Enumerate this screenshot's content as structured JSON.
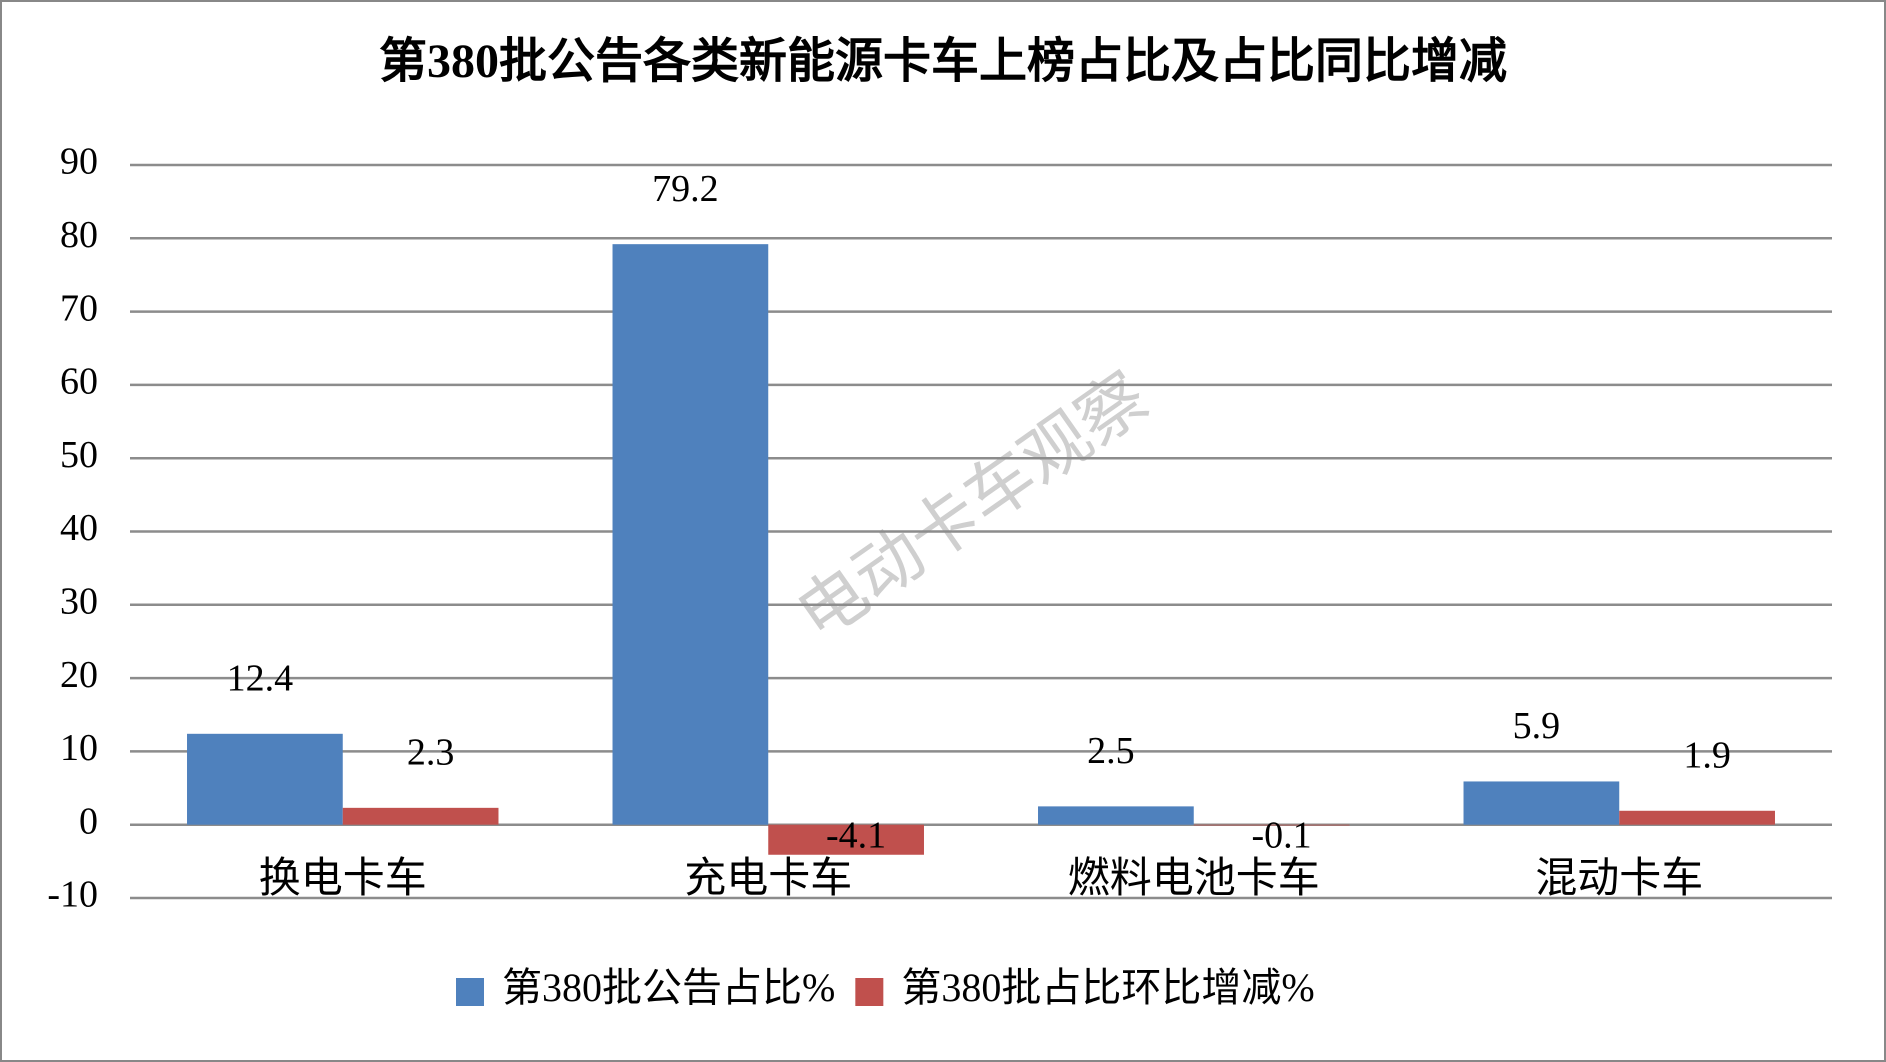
{
  "chart_data": {
    "type": "bar",
    "title": "第380批公告各类新能源卡车上榜占比及占比同比增减",
    "watermark": "电动卡车观察",
    "categories": [
      "换电卡车",
      "充电卡车",
      "燃料电池卡车",
      "混动卡车"
    ],
    "series": [
      {
        "name": "第380批公告占比%",
        "color": "#4f81bd",
        "values": [
          12.4,
          79.2,
          2.5,
          5.9
        ]
      },
      {
        "name": "第380批占比环比增减%",
        "color": "#c0504d",
        "values": [
          2.3,
          -4.1,
          -0.1,
          1.9
        ]
      }
    ],
    "ylim": [
      -10,
      90
    ],
    "yticks": [
      -10,
      0,
      10,
      20,
      30,
      40,
      50,
      60,
      70,
      80,
      90
    ],
    "grid": true,
    "legend": "bottom"
  }
}
